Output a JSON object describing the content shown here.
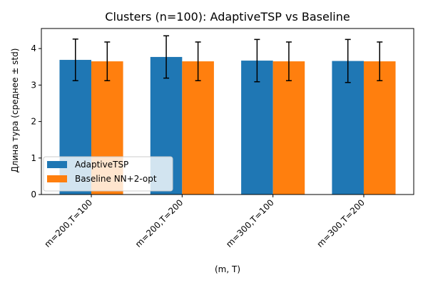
{
  "chart_data": {
    "type": "bar",
    "title": "Clusters (n=100): AdaptiveTSP vs Baseline",
    "xlabel": "(m, T)",
    "ylabel": "Длина тура (среднее ± std)",
    "categories": [
      "m=200,T=100",
      "m=200,T=200",
      "m=300,T=100",
      "m=300,T=200"
    ],
    "ylim": [
      0,
      4.55
    ],
    "yticks": [
      "0",
      "1",
      "2",
      "3",
      "4"
    ],
    "grid": false,
    "legend_position": "lower-left",
    "series": [
      {
        "name": "AdaptiveTSP",
        "color": "#1f77b4",
        "values": [
          3.69,
          3.77,
          3.67,
          3.66
        ],
        "std": [
          0.57,
          0.58,
          0.58,
          0.59
        ]
      },
      {
        "name": "Baseline NN+2-opt",
        "color": "#ff7f0e",
        "values": [
          3.65,
          3.65,
          3.65,
          3.65
        ],
        "std": [
          0.53,
          0.53,
          0.53,
          0.53
        ]
      }
    ]
  }
}
